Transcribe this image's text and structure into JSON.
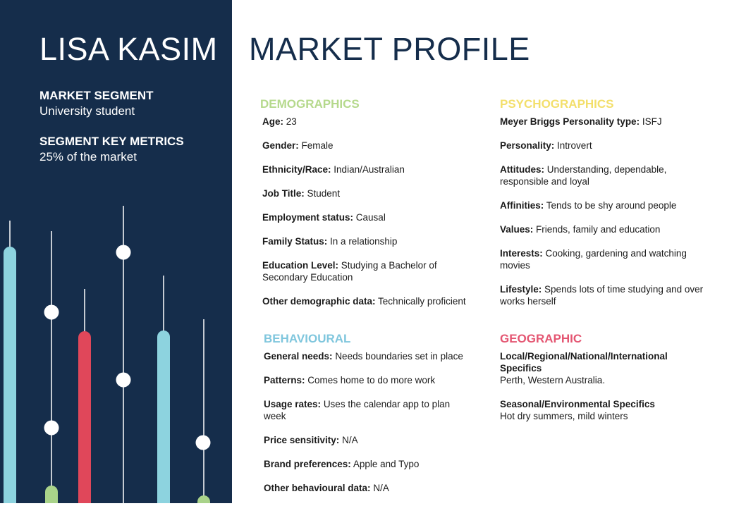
{
  "persona": {
    "name": "LISA KASIM",
    "segment_label": "MARKET SEGMENT",
    "segment_value": "University student",
    "metrics_label": "SEGMENT KEY METRICS",
    "metrics_value": "25% of the market"
  },
  "title": "MARKET PROFILE",
  "colors": {
    "navy": "#152d4b",
    "demographics": "#b5d98c",
    "psychographics": "#f3df6b",
    "behavioural": "#7fc6dd",
    "geographic": "#e45672",
    "bar_red": "#e0475a",
    "bar_blue": "#8dd3df",
    "bar_green": "#a9d38a"
  },
  "demographics": {
    "heading": "DEMOGRAPHICS",
    "items": [
      {
        "label": "Age:",
        "value": "23"
      },
      {
        "label": "Gender:",
        "value": "Female"
      },
      {
        "label": "Ethnicity/Race:",
        "value": "Indian/Australian"
      },
      {
        "label": "Job Title:",
        "value": "Student"
      },
      {
        "label": "Employment status:",
        "value": "Causal"
      },
      {
        "label": "Family Status:",
        "value": "In a relationship"
      },
      {
        "label": "Education Level:",
        "value": "Studying a Bachelor of Secondary Education"
      },
      {
        "label": "Other demographic data:",
        "value": "Technically proficient"
      }
    ]
  },
  "psychographics": {
    "heading": "PSYCHOGRAPHICS",
    "items": [
      {
        "label": "Meyer Briggs Personality type:",
        "value": "ISFJ"
      },
      {
        "label": "Personality:",
        "value": "Introvert"
      },
      {
        "label": "Attitudes:",
        "value": "Understanding, dependable, responsible and loyal"
      },
      {
        "label": "Affinities:",
        "value": "Tends to be shy around people"
      },
      {
        "label": "Values:",
        "value": "Friends, family and education"
      },
      {
        "label": "Interests:",
        "value": "Cooking, gardening and watching movies"
      },
      {
        "label": "Lifestyle:",
        "value": "Spends lots of time studying and over works herself"
      }
    ]
  },
  "behavioural": {
    "heading": "BEHAVIOURAL",
    "items": [
      {
        "label": "General needs:",
        "value": "Needs boundaries set in place"
      },
      {
        "label": "Patterns:",
        "value": "Comes home to do more work"
      },
      {
        "label": "Usage rates:",
        "value": "Uses the calendar app to plan week"
      },
      {
        "label": "Price sensitivity:",
        "value": "N/A"
      },
      {
        "label": "Brand preferences:",
        "value": "Apple and Typo"
      },
      {
        "label": "Other behavioural data:",
        "value": "N/A"
      }
    ]
  },
  "geographic": {
    "heading": "GEOGRAPHIC",
    "specifics_label": "Local/Regional/National/International Specifics",
    "specifics_value": "Perth, Western Australia.",
    "seasonal_label": "Seasonal/Environmental Specifics",
    "seasonal_value": "Hot dry summers, mild winters"
  }
}
